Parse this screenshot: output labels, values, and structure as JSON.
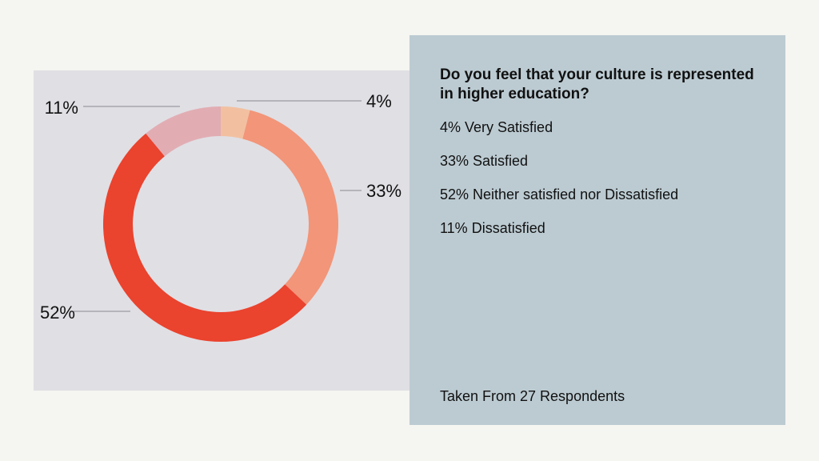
{
  "chart_data": {
    "type": "pie",
    "title": "Do you feel that your culture is represented in higher education?",
    "slices": [
      {
        "label": "Very Satisfied",
        "value": 4,
        "pct_label": "4%",
        "legend": "4% Very Satisfied",
        "color": "#f2c0a0"
      },
      {
        "label": "Satisfied",
        "value": 33,
        "pct_label": "33%",
        "legend": "33% Satisfied",
        "color": "#f29579"
      },
      {
        "label": "Neither satisfied nor Dissatisfied",
        "value": 52,
        "pct_label": "52%",
        "legend": "52% Neither satisfied nor Dissatisfied",
        "color": "#ea432e"
      },
      {
        "label": "Dissatisfied",
        "value": 11,
        "pct_label": "11%",
        "legend": "11% Dissatisfied",
        "color": "#e1adb3"
      }
    ],
    "footnote": "Taken From 27 Respondents"
  },
  "colors": {
    "page_background": "#f5f5f1",
    "chart_panel": "#e0dfe4",
    "info_panel": "#bccbd2",
    "text": "#111111"
  }
}
